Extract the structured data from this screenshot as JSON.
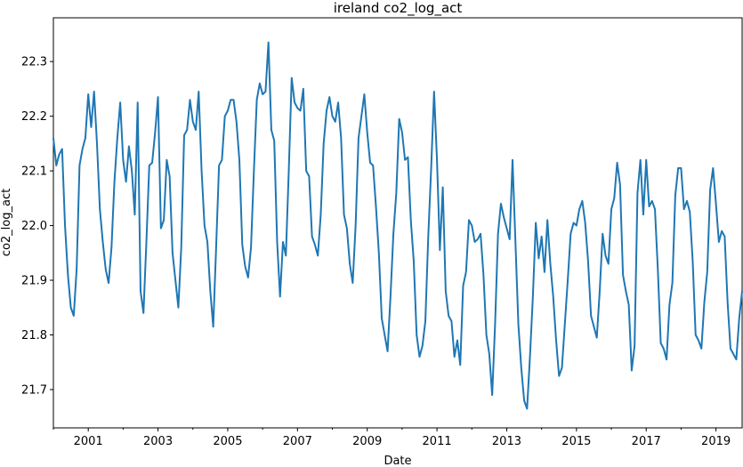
{
  "chart_data": {
    "type": "line",
    "title": "ireland co2_log_act",
    "xlabel": "Date",
    "ylabel": "co2_log_act",
    "xlim": [
      "2000-01-01",
      "2019-10-01"
    ],
    "ylim": [
      21.63,
      22.38
    ],
    "xticks": [
      "2001",
      "2003",
      "2005",
      "2007",
      "2009",
      "2011",
      "2013",
      "2015",
      "2017",
      "2019"
    ],
    "yticks": [
      "21.7",
      "21.8",
      "21.9",
      "22.0",
      "22.1",
      "22.2",
      "22.3"
    ],
    "grid": false,
    "legend": "none",
    "line_color": "#1f77b4",
    "series": [
      {
        "x": [
          "2000-01-01",
          "2000-02-01",
          "2000-03-01",
          "2000-04-01",
          "2000-05-01",
          "2000-06-01",
          "2000-07-01",
          "2000-08-01",
          "2000-09-01",
          "2000-10-01",
          "2000-11-01",
          "2000-12-01",
          "2001-01-01",
          "2001-02-01",
          "2001-03-01",
          "2001-04-01",
          "2001-05-01",
          "2001-06-01",
          "2001-07-01",
          "2001-08-01",
          "2001-09-01",
          "2001-10-01",
          "2001-11-01",
          "2001-12-01",
          "2002-01-01",
          "2002-02-01",
          "2002-03-01",
          "2002-04-01",
          "2002-05-01",
          "2002-06-01",
          "2002-07-01",
          "2002-08-01",
          "2002-09-01",
          "2002-10-01",
          "2002-11-01",
          "2002-12-01",
          "2003-01-01",
          "2003-02-01",
          "2003-03-01",
          "2003-04-01",
          "2003-05-01",
          "2003-06-01",
          "2003-07-01",
          "2003-08-01",
          "2003-09-01",
          "2003-10-01",
          "2003-11-01",
          "2003-12-01",
          "2004-01-01",
          "2004-02-01",
          "2004-03-01",
          "2004-04-01",
          "2004-05-01",
          "2004-06-01",
          "2004-07-01",
          "2004-08-01",
          "2004-09-01",
          "2004-10-01",
          "2004-11-01",
          "2004-12-01",
          "2005-01-01",
          "2005-02-01",
          "2005-03-01",
          "2005-04-01",
          "2005-05-01",
          "2005-06-01",
          "2005-07-01",
          "2005-08-01",
          "2005-09-01",
          "2005-10-01",
          "2005-11-01",
          "2005-12-01",
          "2006-01-01",
          "2006-02-01",
          "2006-03-01",
          "2006-04-01",
          "2006-05-01",
          "2006-06-01",
          "2006-07-01",
          "2006-08-01",
          "2006-09-01",
          "2006-10-01",
          "2006-11-01",
          "2006-12-01",
          "2007-01-01",
          "2007-02-01",
          "2007-03-01",
          "2007-04-01",
          "2007-05-01",
          "2007-06-01",
          "2007-07-01",
          "2007-08-01",
          "2007-09-01",
          "2007-10-01",
          "2007-11-01",
          "2007-12-01",
          "2008-01-01",
          "2008-02-01",
          "2008-03-01",
          "2008-04-01",
          "2008-05-01",
          "2008-06-01",
          "2008-07-01",
          "2008-08-01",
          "2008-09-01",
          "2008-10-01",
          "2008-11-01",
          "2008-12-01",
          "2009-01-01",
          "2009-02-01",
          "2009-03-01",
          "2009-04-01",
          "2009-05-01",
          "2009-06-01",
          "2009-07-01",
          "2009-08-01",
          "2009-09-01",
          "2009-10-01",
          "2009-11-01",
          "2009-12-01",
          "2010-01-01",
          "2010-02-01",
          "2010-03-01",
          "2010-04-01",
          "2010-05-01",
          "2010-06-01",
          "2010-07-01",
          "2010-08-01",
          "2010-09-01",
          "2010-10-01",
          "2010-11-01",
          "2010-12-01",
          "2011-01-01",
          "2011-02-01",
          "2011-03-01",
          "2011-04-01",
          "2011-05-01",
          "2011-06-01",
          "2011-07-01",
          "2011-08-01",
          "2011-09-01",
          "2011-10-01",
          "2011-11-01",
          "2011-12-01",
          "2012-01-01",
          "2012-02-01",
          "2012-03-01",
          "2012-04-01",
          "2012-05-01",
          "2012-06-01",
          "2012-07-01",
          "2012-08-01",
          "2012-09-01",
          "2012-10-01",
          "2012-11-01",
          "2012-12-01",
          "2013-01-01",
          "2013-02-01",
          "2013-03-01",
          "2013-04-01",
          "2013-05-01",
          "2013-06-01",
          "2013-07-01",
          "2013-08-01",
          "2013-09-01",
          "2013-10-01",
          "2013-11-01",
          "2013-12-01",
          "2014-01-01",
          "2014-02-01",
          "2014-03-01",
          "2014-04-01",
          "2014-05-01",
          "2014-06-01",
          "2014-07-01",
          "2014-08-01",
          "2014-09-01",
          "2014-10-01",
          "2014-11-01",
          "2014-12-01",
          "2015-01-01",
          "2015-02-01",
          "2015-03-01",
          "2015-04-01",
          "2015-05-01",
          "2015-06-01",
          "2015-07-01",
          "2015-08-01",
          "2015-09-01",
          "2015-10-01",
          "2015-11-01",
          "2015-12-01",
          "2016-01-01",
          "2016-02-01",
          "2016-03-01",
          "2016-04-01",
          "2016-05-01",
          "2016-06-01",
          "2016-07-01",
          "2016-08-01",
          "2016-09-01",
          "2016-10-01",
          "2016-11-01",
          "2016-12-01",
          "2017-01-01",
          "2017-02-01",
          "2017-03-01",
          "2017-04-01",
          "2017-05-01",
          "2017-06-01",
          "2017-07-01",
          "2017-08-01",
          "2017-09-01",
          "2017-10-01",
          "2017-11-01",
          "2017-12-01",
          "2018-01-01",
          "2018-02-01",
          "2018-03-01",
          "2018-04-01",
          "2018-05-01",
          "2018-06-01",
          "2018-07-01",
          "2018-08-01",
          "2018-09-01",
          "2018-10-01",
          "2018-11-01",
          "2018-12-01",
          "2019-01-01",
          "2019-02-01",
          "2019-03-01",
          "2019-04-01",
          "2019-05-01",
          "2019-06-01",
          "2019-07-01",
          "2019-08-01",
          "2019-09-01",
          "2019-10-01"
        ],
        "values": [
          22.16,
          22.11,
          22.13,
          22.14,
          22.0,
          21.91,
          21.85,
          21.835,
          21.92,
          22.11,
          22.14,
          22.16,
          22.24,
          22.18,
          22.245,
          22.15,
          22.03,
          21.97,
          21.92,
          21.895,
          21.96,
          22.08,
          22.16,
          22.225,
          22.12,
          22.08,
          22.145,
          22.1,
          22.02,
          22.225,
          21.88,
          21.84,
          21.97,
          22.11,
          22.115,
          22.17,
          22.235,
          21.995,
          22.01,
          22.12,
          22.09,
          21.95,
          21.9,
          21.85,
          21.96,
          22.165,
          22.175,
          22.23,
          22.19,
          22.175,
          22.245,
          22.1,
          22.0,
          21.97,
          21.88,
          21.815,
          21.96,
          22.11,
          22.12,
          22.2,
          22.21,
          22.23,
          22.23,
          22.19,
          22.12,
          21.965,
          21.925,
          21.905,
          21.96,
          22.1,
          22.23,
          22.26,
          22.24,
          22.245,
          22.335,
          22.175,
          22.155,
          21.97,
          21.87,
          21.97,
          21.945,
          22.1,
          22.27,
          22.225,
          22.215,
          22.21,
          22.25,
          22.1,
          22.09,
          21.98,
          21.965,
          21.945,
          22.02,
          22.15,
          22.21,
          22.235,
          22.2,
          22.19,
          22.225,
          22.16,
          22.02,
          21.995,
          21.93,
          21.895,
          22.0,
          22.16,
          22.2,
          22.24,
          22.17,
          22.115,
          22.11,
          22.035,
          21.95,
          21.83,
          21.8,
          21.77,
          21.87,
          21.985,
          22.06,
          22.195,
          22.17,
          22.12,
          22.125,
          22.01,
          21.935,
          21.8,
          21.76,
          21.78,
          21.825,
          21.98,
          22.105,
          22.245,
          22.12,
          21.955,
          22.07,
          21.88,
          21.835,
          21.825,
          21.76,
          21.79,
          21.745,
          21.89,
          21.915,
          22.01,
          22.0,
          21.97,
          21.975,
          21.985,
          21.91,
          21.8,
          21.765,
          21.69,
          21.82,
          21.985,
          22.04,
          22.015,
          21.995,
          21.975,
          22.12,
          21.97,
          21.82,
          21.74,
          21.68,
          21.665,
          21.76,
          21.87,
          22.005,
          21.94,
          21.98,
          21.915,
          22.01,
          21.93,
          21.87,
          21.79,
          21.725,
          21.74,
          21.82,
          21.9,
          21.985,
          22.005,
          22.0,
          22.03,
          22.045,
          22.005,
          21.935,
          21.835,
          21.815,
          21.795,
          21.88,
          21.985,
          21.945,
          21.93,
          22.03,
          22.05,
          22.115,
          22.075,
          21.91,
          21.88,
          21.855,
          21.735,
          21.78,
          22.06,
          22.12,
          22.02,
          22.12,
          22.035,
          22.045,
          22.03,
          21.92,
          21.785,
          21.775,
          21.755,
          21.855,
          21.895,
          22.055,
          22.105,
          22.105,
          22.03,
          22.045,
          22.025,
          21.935,
          21.8,
          21.79,
          21.775,
          21.86,
          21.915,
          22.065,
          22.105,
          22.04,
          21.97,
          21.99,
          21.98,
          21.86,
          21.775,
          21.765,
          21.755,
          21.83,
          21.88
        ]
      }
    ]
  }
}
